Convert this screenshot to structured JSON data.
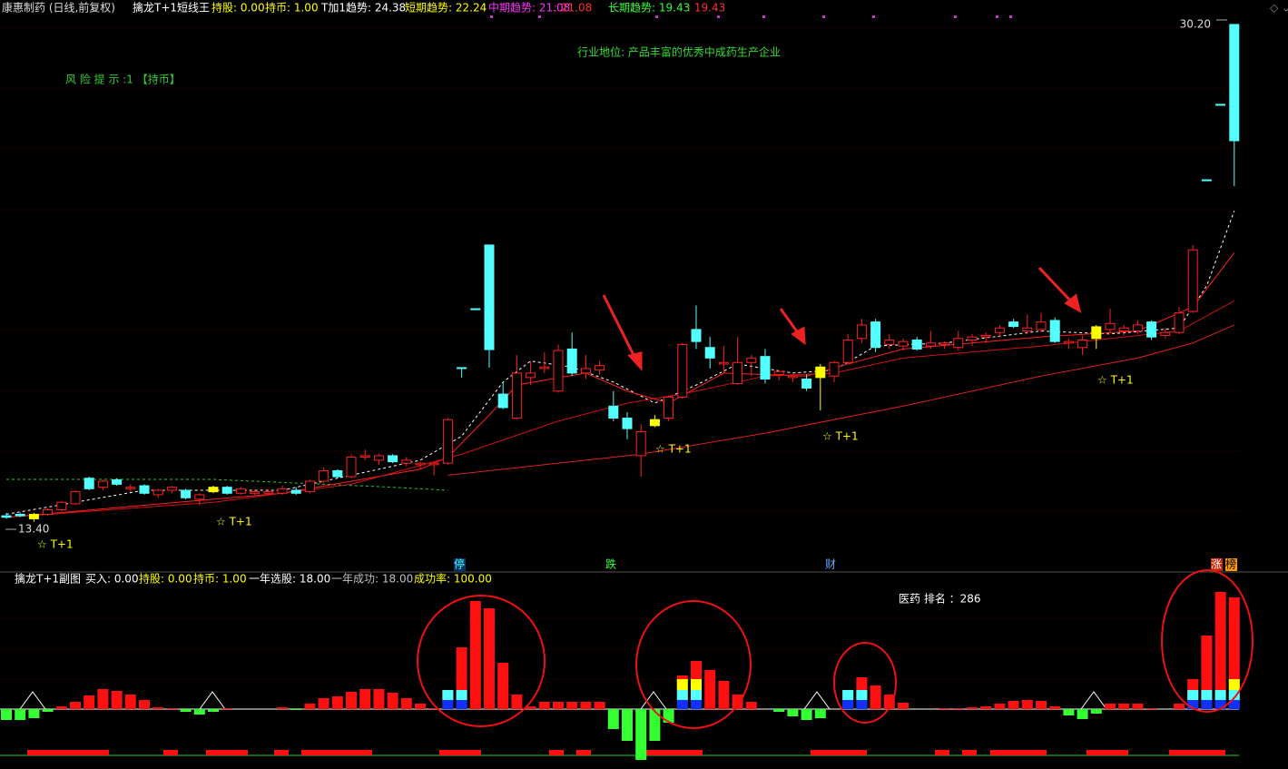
{
  "chart_data": [
    {
      "type": "candlestick",
      "title": "康惠制药 (日线,前复权)",
      "indicator_name": "擒龙T+1短线王",
      "indicators": [
        {
          "text": "持股: 0.00",
          "color": "#ffff00"
        },
        {
          "text": "持币: 1.00",
          "color": "#ffff00"
        },
        {
          "text": "T加1趋势: 24.38",
          "color": "#ffffff"
        },
        {
          "text": "短期趋势: 22.24",
          "color": "#ffff00"
        },
        {
          "text": "中期趋势: 21.08",
          "color": "#ff33ff"
        },
        {
          "text": ": 21.08",
          "color": "#ff3030"
        },
        {
          "text": "长期趋势: 19.43",
          "color": "#33ff33"
        },
        {
          "text": ": 19.43",
          "color": "#ff3030"
        }
      ],
      "industry": "行业地位: 产品丰富的优秀中成药生产企业",
      "risk": "风 险 提 示 :1 【持币】",
      "high_label": "30.20",
      "low_label": "13.40",
      "stars": [
        "☆ T+1",
        "☆ T+1",
        "☆ T+1",
        "☆ T+1",
        "☆ T+1"
      ],
      "markers": [
        {
          "text": "停",
          "color": "#54ffff",
          "bg": "#003366"
        },
        {
          "text": "跌",
          "color": "#33ff33",
          "bg": "#000000"
        },
        {
          "text": "财",
          "color": "#66aaff",
          "bg": "#000000"
        },
        {
          "text": "涨",
          "color": "#ffffff",
          "bg": "#cc2200"
        },
        {
          "text": "榜",
          "color": "#000000",
          "bg": "#ff9900"
        }
      ],
      "ylim": [
        11.98,
        30.47
      ],
      "grid": true,
      "up_color": "#ff2020",
      "down_color": "#54ffff",
      "highlight_color": "#ffff00",
      "highlight": [
        2,
        15,
        47,
        59,
        79
      ],
      "ohlc": [
        [
          13.85,
          13.95,
          13.75,
          13.8
        ],
        [
          13.9,
          13.95,
          13.8,
          13.85
        ],
        [
          13.75,
          13.95,
          13.65,
          13.9
        ],
        [
          13.9,
          14.1,
          13.85,
          14.05
        ],
        [
          14.05,
          14.35,
          14.0,
          14.3
        ],
        [
          14.25,
          14.7,
          14.2,
          14.65
        ],
        [
          15.1,
          15.15,
          14.7,
          14.75
        ],
        [
          14.8,
          15.05,
          14.7,
          15.0
        ],
        [
          15.05,
          15.1,
          14.85,
          14.9
        ],
        [
          14.75,
          14.9,
          14.65,
          14.8
        ],
        [
          14.85,
          14.9,
          14.55,
          14.6
        ],
        [
          14.55,
          14.75,
          14.45,
          14.7
        ],
        [
          14.7,
          14.85,
          14.6,
          14.8
        ],
        [
          14.7,
          14.75,
          14.4,
          14.45
        ],
        [
          14.4,
          14.6,
          14.2,
          14.55
        ],
        [
          14.65,
          14.85,
          14.6,
          14.8
        ],
        [
          14.8,
          14.85,
          14.55,
          14.6
        ],
        [
          14.6,
          14.8,
          14.55,
          14.75
        ],
        [
          14.6,
          14.7,
          14.55,
          14.65
        ],
        [
          14.6,
          14.7,
          14.55,
          14.65
        ],
        [
          14.6,
          14.85,
          14.55,
          14.75
        ],
        [
          14.7,
          14.8,
          14.55,
          14.6
        ],
        [
          14.65,
          15.05,
          14.6,
          15.0
        ],
        [
          15.0,
          15.45,
          14.95,
          15.35
        ],
        [
          15.35,
          15.4,
          15.1,
          15.15
        ],
        [
          15.15,
          15.9,
          15.1,
          15.8
        ],
        [
          15.8,
          16.05,
          15.7,
          15.85
        ],
        [
          15.7,
          15.9,
          15.55,
          15.85
        ],
        [
          15.85,
          15.9,
          15.6,
          15.65
        ],
        [
          15.6,
          15.8,
          15.5,
          15.7
        ],
        [
          15.55,
          15.65,
          15.4,
          15.6
        ],
        [
          15.55,
          15.65,
          15.2,
          15.6
        ],
        [
          15.6,
          17.1,
          15.55,
          17.05
        ],
        [
          18.78,
          18.78,
          18.45,
          18.78
        ],
        [
          20.74,
          20.74,
          20.74,
          20.74
        ],
        [
          22.86,
          22.86,
          18.78,
          19.38
        ],
        [
          17.9,
          18.3,
          17.4,
          17.45
        ],
        [
          17.1,
          19.2,
          17.05,
          18.6
        ],
        [
          18.45,
          19.0,
          18.2,
          18.6
        ],
        [
          18.75,
          19.3,
          18.6,
          18.8
        ],
        [
          18.0,
          19.55,
          17.95,
          19.35
        ],
        [
          19.4,
          19.95,
          18.5,
          18.6
        ],
        [
          18.6,
          19.2,
          18.4,
          18.75
        ],
        [
          18.7,
          19.0,
          18.55,
          18.85
        ],
        [
          17.5,
          18.0,
          17.0,
          17.1
        ],
        [
          17.1,
          17.3,
          16.4,
          16.75
        ],
        [
          15.85,
          16.9,
          15.15,
          16.65
        ],
        [
          17.05,
          17.2,
          16.8,
          16.85
        ],
        [
          17.1,
          17.85,
          17.0,
          17.8
        ],
        [
          17.8,
          19.6,
          17.75,
          19.55
        ],
        [
          20.05,
          20.85,
          19.4,
          19.65
        ],
        [
          19.45,
          19.8,
          18.75,
          19.1
        ],
        [
          18.9,
          19.5,
          18.6,
          18.95
        ],
        [
          18.25,
          19.8,
          18.2,
          18.95
        ],
        [
          18.95,
          19.2,
          18.5,
          19.1
        ],
        [
          19.15,
          19.4,
          18.25,
          18.4
        ],
        [
          18.55,
          18.7,
          18.35,
          18.65
        ],
        [
          18.45,
          18.55,
          18.3,
          18.5
        ],
        [
          18.4,
          18.55,
          18.0,
          18.1
        ],
        [
          18.45,
          18.9,
          17.36,
          18.8
        ],
        [
          18.5,
          19.0,
          18.3,
          18.95
        ],
        [
          18.95,
          19.9,
          18.9,
          19.7
        ],
        [
          19.75,
          20.4,
          19.6,
          20.2
        ],
        [
          20.3,
          20.4,
          19.3,
          19.45
        ],
        [
          19.55,
          19.9,
          19.4,
          19.7
        ],
        [
          19.5,
          19.75,
          19.35,
          19.65
        ],
        [
          19.7,
          19.8,
          19.35,
          19.4
        ],
        [
          19.5,
          20.0,
          19.4,
          19.6
        ],
        [
          19.55,
          19.65,
          19.4,
          19.6
        ],
        [
          19.45,
          20.0,
          19.35,
          19.75
        ],
        [
          19.7,
          19.9,
          19.5,
          19.8
        ],
        [
          19.8,
          19.95,
          19.6,
          19.85
        ],
        [
          19.95,
          20.2,
          19.8,
          20.1
        ],
        [
          20.3,
          20.4,
          20.1,
          20.15
        ],
        [
          20.0,
          20.55,
          19.9,
          20.1
        ],
        [
          20.05,
          20.6,
          19.95,
          20.3
        ],
        [
          20.35,
          20.45,
          19.6,
          19.65
        ],
        [
          19.6,
          19.75,
          19.4,
          19.65
        ],
        [
          19.45,
          19.85,
          19.2,
          19.7
        ],
        [
          19.75,
          20.2,
          19.4,
          20.14
        ],
        [
          20.05,
          20.75,
          19.95,
          20.25
        ],
        [
          20.0,
          20.2,
          19.85,
          20.1
        ],
        [
          20.0,
          20.35,
          19.9,
          20.2
        ],
        [
          20.3,
          20.35,
          19.7,
          19.8
        ],
        [
          19.85,
          20.1,
          19.75,
          19.95
        ],
        [
          19.95,
          20.8,
          19.9,
          20.6
        ],
        [
          20.65,
          22.85,
          20.6,
          22.7
        ],
        [
          25.03,
          25.03,
          25.03,
          25.03
        ],
        [
          27.54,
          27.54,
          27.54,
          27.54
        ],
        [
          30.2,
          30.2,
          24.82,
          26.33
        ]
      ],
      "lines": [
        {
          "color": "#22cc22",
          "dashed": true,
          "x": [
            0,
            15,
            28,
            32
          ],
          "values": [
            15.06,
            15.06,
            14.8,
            14.7
          ]
        },
        {
          "color": "#ffffff",
          "dashed": true,
          "x": [
            0,
            10,
            20,
            30,
            33,
            36,
            38,
            41,
            44,
            47,
            50,
            53,
            57,
            60,
            63,
            68,
            75,
            80,
            85,
            87,
            89
          ],
          "values": [
            13.9,
            14.7,
            14.7,
            15.7,
            16.5,
            18.3,
            19.0,
            18.8,
            18.3,
            17.6,
            18.2,
            18.9,
            18.6,
            18.7,
            19.5,
            19.6,
            20.0,
            19.9,
            20.1,
            21.5,
            24.0
          ]
        },
        {
          "color": "#ff2020",
          "dashed": false,
          "x": [
            0,
            20,
            30,
            32,
            35,
            37,
            42,
            45,
            48,
            52,
            58,
            61,
            65,
            75,
            82,
            86,
            89
          ],
          "values": [
            13.8,
            14.6,
            15.4,
            15.8,
            17.2,
            18.2,
            18.6,
            18.0,
            17.6,
            18.6,
            18.5,
            18.9,
            19.4,
            19.8,
            20.0,
            20.8,
            22.6
          ]
        },
        {
          "color": "#d01010",
          "dashed": false,
          "x": [
            0,
            15,
            25,
            33,
            40,
            45,
            49,
            55,
            60,
            65,
            75,
            85,
            89
          ],
          "values": [
            13.8,
            14.3,
            14.9,
            15.9,
            17.0,
            17.6,
            17.9,
            18.5,
            18.6,
            19.1,
            19.5,
            20.0,
            21.0
          ]
        },
        {
          "color": "#e02020",
          "dashed": false,
          "x": [
            32,
            40,
            46,
            55,
            65,
            75,
            82,
            86,
            89
          ],
          "values": [
            15.2,
            15.6,
            15.9,
            16.6,
            17.5,
            18.5,
            19.1,
            19.6,
            20.2
          ]
        }
      ]
    },
    {
      "type": "bar",
      "title": "擒龙T+1副图",
      "indicators": [
        {
          "text": "买入: 0.00",
          "color": "#ffffff"
        },
        {
          "text": "持股: 0.00",
          "color": "#ffff00"
        },
        {
          "text": "持币: 1.00",
          "color": "#ffff00"
        },
        {
          "text": "一年选股: 18.00",
          "color": "#ffffff"
        },
        {
          "text": "一年成功: 18.00",
          "color": "#c0c0c0"
        },
        {
          "text": "成功率: 100.00",
          "color": "#ffff00"
        }
      ],
      "rank_label": "医药 排名 ：286",
      "ylim": [
        -6.2,
        14.9
      ],
      "up_color": "#ff1010",
      "down_color": "#33ff33",
      "values": [
        -1.2,
        -1.2,
        -1.0,
        -0.3,
        0.3,
        0.8,
        1.5,
        2.2,
        2.0,
        1.6,
        1.0,
        0.2,
        0.1,
        -0.3,
        -0.6,
        -0.3,
        0.1,
        0,
        0,
        0,
        0.2,
        -0.1,
        0.6,
        1.2,
        1.4,
        1.9,
        2.2,
        2.2,
        1.8,
        1.2,
        0.6,
        0.1,
        2.1,
        6.8,
        11.9,
        11.1,
        5.1,
        1.6,
        0.3,
        0.8,
        0.8,
        0.8,
        0.8,
        0.8,
        -2.2,
        -3.5,
        -5.6,
        -3.5,
        -1.5,
        3.7,
        5.3,
        4.3,
        3.1,
        1.6,
        0.8,
        0,
        -0.3,
        -0.8,
        -1.2,
        -1.0,
        0,
        2.1,
        3.5,
        2.6,
        1.6,
        0.7,
        0,
        0,
        0.1,
        0.1,
        0.2,
        0.3,
        0.6,
        0.9,
        1.0,
        0.9,
        0.3,
        -0.7,
        -1.1,
        -0.5,
        0.6,
        0.6,
        0.6,
        0.1,
        0,
        0.6,
        3.3,
        8.1,
        12.9,
        12.3
      ],
      "segment_x": [
        32,
        33,
        49,
        50,
        61,
        62,
        86,
        87,
        88,
        89
      ],
      "segments": [
        {
          "color": "#1030ff",
          "values": [
            1.0,
            1.0,
            1.0,
            1.0,
            1.0,
            1.0,
            1.0,
            1.0,
            1.0,
            1.0
          ]
        },
        {
          "color": "#54ffff",
          "values": [
            1.1,
            1.1,
            1.1,
            1.1,
            1.1,
            1.1,
            1.1,
            1.1,
            1.1,
            1.1
          ]
        },
        {
          "color": "#ffff00",
          "values": [
            null,
            null,
            1.2,
            1.2,
            null,
            null,
            null,
            null,
            null,
            1.2
          ]
        }
      ]
    }
  ]
}
